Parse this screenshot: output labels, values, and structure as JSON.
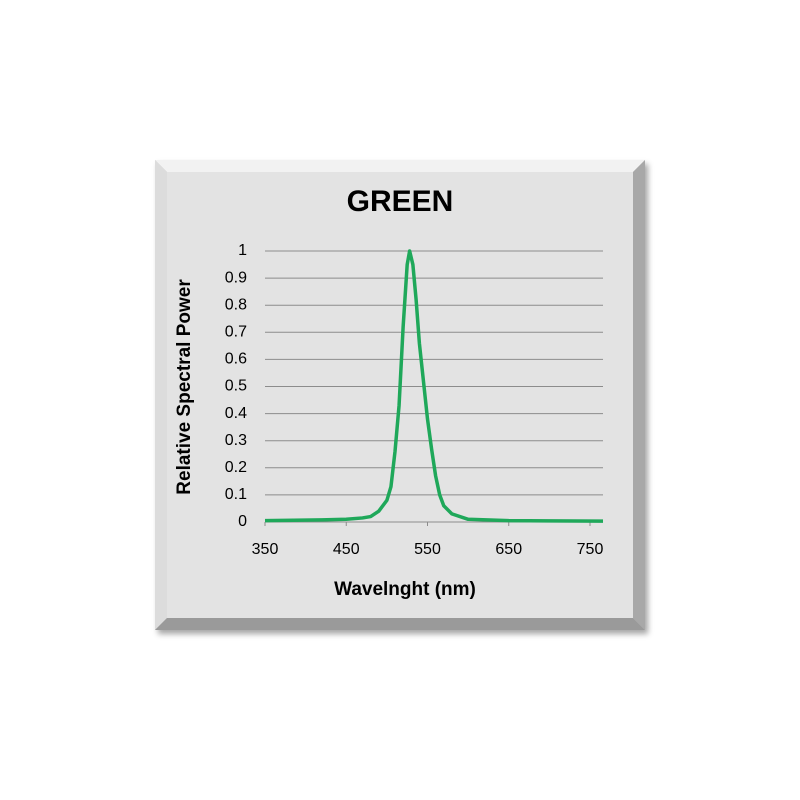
{
  "chart_data": {
    "type": "line",
    "title": "GREEN",
    "x_label": "Wavelnght (nm)",
    "y_label": "Relative Spectral Power",
    "x": [
      350,
      420,
      450,
      470,
      480,
      490,
      500,
      505,
      510,
      515,
      520,
      525,
      528,
      532,
      536,
      540,
      545,
      550,
      555,
      560,
      565,
      570,
      580,
      600,
      650,
      700,
      766
    ],
    "series": [
      {
        "name": "GREEN",
        "color": "#1fa85a",
        "values": [
          0.005,
          0.008,
          0.01,
          0.015,
          0.02,
          0.04,
          0.08,
          0.13,
          0.26,
          0.43,
          0.72,
          0.95,
          1,
          0.95,
          0.82,
          0.66,
          0.52,
          0.38,
          0.27,
          0.17,
          0.1,
          0.06,
          0.03,
          0.01,
          0.005,
          0.004,
          0.003
        ]
      }
    ],
    "xlim": [
      350,
      766
    ],
    "xticks": [
      350,
      450,
      550,
      650,
      750
    ],
    "ylim": [
      0,
      1
    ],
    "yticks": [
      0,
      0.1,
      0.2,
      0.3,
      0.4,
      0.5,
      0.6,
      0.7,
      0.8,
      0.9,
      1
    ],
    "grid": true
  }
}
